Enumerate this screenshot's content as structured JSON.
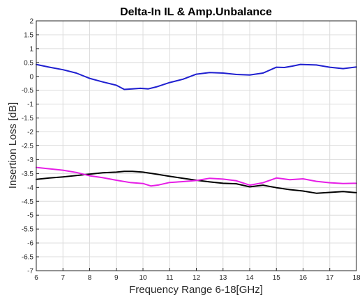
{
  "chart_data": {
    "type": "line",
    "title": "Delta-In IL & Amp.Unbalance",
    "xlabel": "Frequency Range 6-18[GHz]",
    "ylabel": "Insertion Loss [dB]",
    "xlim": [
      6,
      18
    ],
    "ylim": [
      -7,
      2
    ],
    "xticks": [
      6,
      7,
      8,
      9,
      10,
      11,
      12,
      13,
      14,
      15,
      16,
      17,
      18
    ],
    "yticks": [
      -7,
      -6.5,
      -6,
      -5.5,
      -5,
      -4.5,
      -4,
      -3.5,
      -3,
      -2.5,
      -2,
      -1.5,
      -1,
      -0.5,
      0,
      0.5,
      1,
      1.5,
      2
    ],
    "grid": true,
    "legend": "none",
    "series": [
      {
        "color": "#1f1fd0",
        "x": [
          6,
          6.5,
          7,
          7.5,
          8,
          8.5,
          9,
          9.3,
          9.6,
          9.9,
          10.2,
          10.5,
          11,
          11.5,
          12,
          12.5,
          13,
          13.5,
          14,
          14.5,
          15,
          15.3,
          15.6,
          15.9,
          16.2,
          16.5,
          17,
          17.5,
          18
        ],
        "y": [
          0.43,
          0.33,
          0.24,
          0.12,
          -0.07,
          -0.2,
          -0.32,
          -0.47,
          -0.45,
          -0.43,
          -0.45,
          -0.38,
          -0.22,
          -0.1,
          0.08,
          0.14,
          0.12,
          0.07,
          0.05,
          0.12,
          0.33,
          0.32,
          0.37,
          0.43,
          0.42,
          0.41,
          0.33,
          0.28,
          0.34
        ]
      },
      {
        "color": "#000000",
        "x": [
          6,
          6.5,
          7,
          7.5,
          8,
          8.5,
          9,
          9.3,
          9.6,
          10,
          10.5,
          11,
          11.5,
          12,
          12.5,
          13,
          13.5,
          14,
          14.5,
          15,
          15.5,
          16,
          16.5,
          17,
          17.5,
          18
        ],
        "y": [
          -3.71,
          -3.66,
          -3.62,
          -3.57,
          -3.52,
          -3.47,
          -3.45,
          -3.42,
          -3.42,
          -3.45,
          -3.52,
          -3.6,
          -3.67,
          -3.74,
          -3.8,
          -3.85,
          -3.87,
          -3.98,
          -3.92,
          -4.01,
          -4.08,
          -4.13,
          -4.21,
          -4.18,
          -4.15,
          -4.19
        ]
      },
      {
        "color": "#e61ee6",
        "x": [
          6,
          6.5,
          7,
          7.5,
          8,
          8.5,
          9,
          9.5,
          10,
          10.3,
          10.6,
          11,
          11.5,
          12,
          12.5,
          13,
          13.5,
          14,
          14.5,
          15,
          15.5,
          16,
          16.5,
          17,
          17.5,
          18
        ],
        "y": [
          -3.28,
          -3.33,
          -3.38,
          -3.46,
          -3.58,
          -3.65,
          -3.74,
          -3.82,
          -3.86,
          -3.95,
          -3.91,
          -3.82,
          -3.79,
          -3.75,
          -3.67,
          -3.7,
          -3.76,
          -3.92,
          -3.83,
          -3.66,
          -3.72,
          -3.69,
          -3.78,
          -3.83,
          -3.86,
          -3.85
        ]
      }
    ]
  }
}
